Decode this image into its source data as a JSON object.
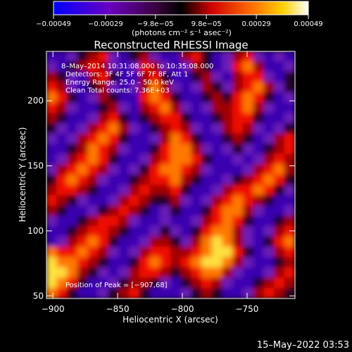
{
  "chart_data": {
    "type": "heatmap",
    "title": "Reconstructed RHESSI Image",
    "xlabel": "Heliocentric X (arcsec)",
    "ylabel": "Heliocentric Y (arcsec)",
    "x_range": [
      -905,
      -713
    ],
    "y_range": [
      48,
      238
    ],
    "x_ticks": [
      -900,
      -850,
      -800,
      -750
    ],
    "x_tick_labels": [
      "−900",
      "−850",
      "−800",
      "−750"
    ],
    "y_ticks": [
      50,
      100,
      150,
      200
    ],
    "y_tick_labels": [
      "50",
      "100",
      "150",
      "200"
    ],
    "colorbar": {
      "range": [
        -0.00049,
        0.00049
      ],
      "ticks": [
        -0.00049,
        -0.00029,
        -9.8e-05,
        9.8e-05,
        0.00029,
        0.00049
      ],
      "tick_labels": [
        "−0.00049",
        "−0.00029",
        "−9.8e−05",
        "9.8e−05",
        "0.00029",
        "0.00049"
      ],
      "units_label": "(photons cm⁻² s⁻¹ asec⁻²)",
      "colormap": "rainbow-blue-to-red-to-white",
      "colors": [
        "#0000FF",
        "#7A00B4",
        "#000000",
        "#D80000",
        "#FF8000",
        "#FFFFFF"
      ]
    },
    "annotations": [
      "8–May–2014 10:31:08.000 to 10:35:08.000",
      "Detectors: 3F 4F 5F 6F 7F 8F, Att 1",
      "Energy Range: 25.0 – 50.0 keV",
      "Clean     Total counts: 7.36E+03"
    ],
    "peak_label": "Position of Peak = [−907,68]",
    "peak_position": [
      -907,
      68
    ],
    "image_grid": {
      "nx": 24,
      "ny": 24,
      "values": [
        [
          -3,
          -3,
          -2,
          -1,
          1,
          2,
          -2,
          -3,
          -1,
          1,
          -2,
          -3,
          -3,
          1,
          2,
          -1,
          -3,
          -2,
          1,
          2,
          -2,
          -3,
          -2,
          -3
        ],
        [
          -2,
          -3,
          -1,
          1,
          2,
          1,
          -2,
          -3,
          -2,
          2,
          1,
          -2,
          -3,
          -2,
          1,
          -1,
          -3,
          -2,
          2,
          3,
          1,
          -3,
          -3,
          -2
        ],
        [
          1,
          -1,
          -2,
          -3,
          1,
          2,
          -1,
          -3,
          -3,
          1,
          2,
          -1,
          -3,
          -3,
          -1,
          1,
          -2,
          -3,
          1,
          2,
          2,
          -2,
          -3,
          -1
        ],
        [
          2,
          1,
          -2,
          -3,
          -1,
          1,
          -2,
          -3,
          -2,
          1,
          3,
          1,
          -2,
          -3,
          -2,
          1,
          -1,
          -2,
          1,
          2,
          3,
          1,
          -2,
          -1
        ],
        [
          3,
          2,
          -1,
          -3,
          -2,
          1,
          -1,
          -3,
          -3,
          2,
          3,
          2,
          -1,
          -3,
          -3,
          -1,
          1,
          -1,
          2,
          3,
          2,
          -1,
          -3,
          -2
        ],
        [
          2,
          1,
          -2,
          -3,
          -3,
          -1,
          1,
          -2,
          -3,
          1,
          2,
          3,
          1,
          -2,
          -3,
          -2,
          1,
          1,
          2,
          3,
          1,
          -2,
          -3,
          -3
        ],
        [
          1,
          -1,
          -3,
          -3,
          -2,
          1,
          2,
          -1,
          -3,
          -1,
          1,
          2,
          2,
          -1,
          -3,
          -3,
          -1,
          1,
          2,
          2,
          -1,
          -3,
          -3,
          -2
        ],
        [
          -1,
          -2,
          -3,
          -2,
          1,
          2,
          3,
          1,
          -2,
          -3,
          -1,
          1,
          2,
          1,
          -2,
          -3,
          -2,
          1,
          2,
          1,
          -2,
          -3,
          -2,
          -1
        ],
        [
          -2,
          -3,
          -2,
          1,
          2,
          3,
          2,
          -1,
          -3,
          -3,
          -2,
          1,
          3,
          2,
          -1,
          -3,
          -3,
          -1,
          1,
          -1,
          -3,
          -2,
          1,
          2
        ],
        [
          -3,
          -3,
          -1,
          1,
          3,
          2,
          1,
          -2,
          -3,
          -3,
          -1,
          2,
          3,
          3,
          1,
          -2,
          -3,
          -2,
          -1,
          -2,
          -3,
          -1,
          1,
          2
        ],
        [
          -3,
          -2,
          1,
          2,
          3,
          2,
          -1,
          -3,
          -3,
          -2,
          1,
          2,
          3,
          3,
          2,
          -1,
          -3,
          -3,
          -2,
          -3,
          -2,
          1,
          2,
          1
        ],
        [
          -2,
          1,
          2,
          3,
          2,
          1,
          -2,
          -3,
          -2,
          -1,
          2,
          3,
          3,
          2,
          1,
          -2,
          -3,
          -3,
          -3,
          -2,
          1,
          2,
          3,
          1
        ],
        [
          -1,
          2,
          3,
          2,
          1,
          -2,
          -3,
          -3,
          -1,
          1,
          2,
          2,
          3,
          1,
          -1,
          -3,
          -3,
          -2,
          -1,
          1,
          2,
          3,
          2,
          -1
        ],
        [
          1,
          2,
          2,
          1,
          -1,
          -3,
          -3,
          -2,
          1,
          2,
          1,
          1,
          2,
          -1,
          -3,
          -3,
          -2,
          1,
          2,
          2,
          3,
          2,
          -1,
          -2
        ],
        [
          2,
          1,
          -1,
          -2,
          -3,
          -3,
          -2,
          1,
          2,
          1,
          -1,
          -1,
          1,
          -2,
          -3,
          -2,
          1,
          2,
          3,
          2,
          1,
          -1,
          -3,
          -3
        ],
        [
          1,
          -1,
          -3,
          -3,
          -2,
          -1,
          1,
          2,
          1,
          -1,
          -3,
          -2,
          -1,
          -3,
          -3,
          -1,
          2,
          3,
          3,
          1,
          -2,
          -3,
          -3,
          -2
        ],
        [
          -2,
          -3,
          -3,
          -1,
          1,
          2,
          2,
          1,
          -2,
          -3,
          -3,
          -2,
          -3,
          -3,
          -2,
          1,
          2,
          3,
          2,
          -1,
          -3,
          -3,
          -1,
          1
        ],
        [
          -3,
          -3,
          -1,
          1,
          2,
          2,
          1,
          -1,
          -3,
          -3,
          -2,
          -1,
          -2,
          -3,
          -1,
          2,
          3,
          3,
          1,
          -2,
          -3,
          -2,
          1,
          2
        ],
        [
          -3,
          -2,
          1,
          2,
          3,
          2,
          -1,
          -3,
          -3,
          -2,
          1,
          1,
          -1,
          -2,
          1,
          3,
          4,
          3,
          1,
          -2,
          -3,
          -1,
          2,
          3
        ],
        [
          3,
          2,
          2,
          3,
          2,
          1,
          -2,
          -3,
          -2,
          1,
          2,
          2,
          1,
          1,
          2,
          3,
          4,
          4,
          2,
          -1,
          -3,
          -2,
          1,
          2
        ],
        [
          4,
          3,
          3,
          2,
          1,
          -1,
          -3,
          -3,
          -1,
          2,
          3,
          2,
          1,
          2,
          3,
          4,
          4,
          3,
          1,
          -2,
          -3,
          -3,
          -1,
          1
        ],
        [
          4,
          4,
          3,
          1,
          -1,
          -2,
          -3,
          -2,
          1,
          2,
          2,
          1,
          -1,
          1,
          2,
          3,
          3,
          1,
          -2,
          -3,
          -3,
          -2,
          1,
          2
        ],
        [
          4,
          3,
          2,
          -1,
          -3,
          -3,
          -2,
          -1,
          1,
          1,
          -1,
          -2,
          -3,
          -1,
          1,
          2,
          1,
          -2,
          -3,
          -3,
          -1,
          1,
          2,
          1
        ],
        [
          3,
          2,
          -1,
          -3,
          -3,
          -2,
          -1,
          1,
          2,
          -1,
          -3,
          -3,
          -3,
          -2,
          -1,
          1,
          -1,
          -3,
          -3,
          -2,
          1,
          2,
          1,
          -1
        ]
      ]
    }
  },
  "footer": {
    "date_stamp": "15–May–2022 03:53"
  }
}
